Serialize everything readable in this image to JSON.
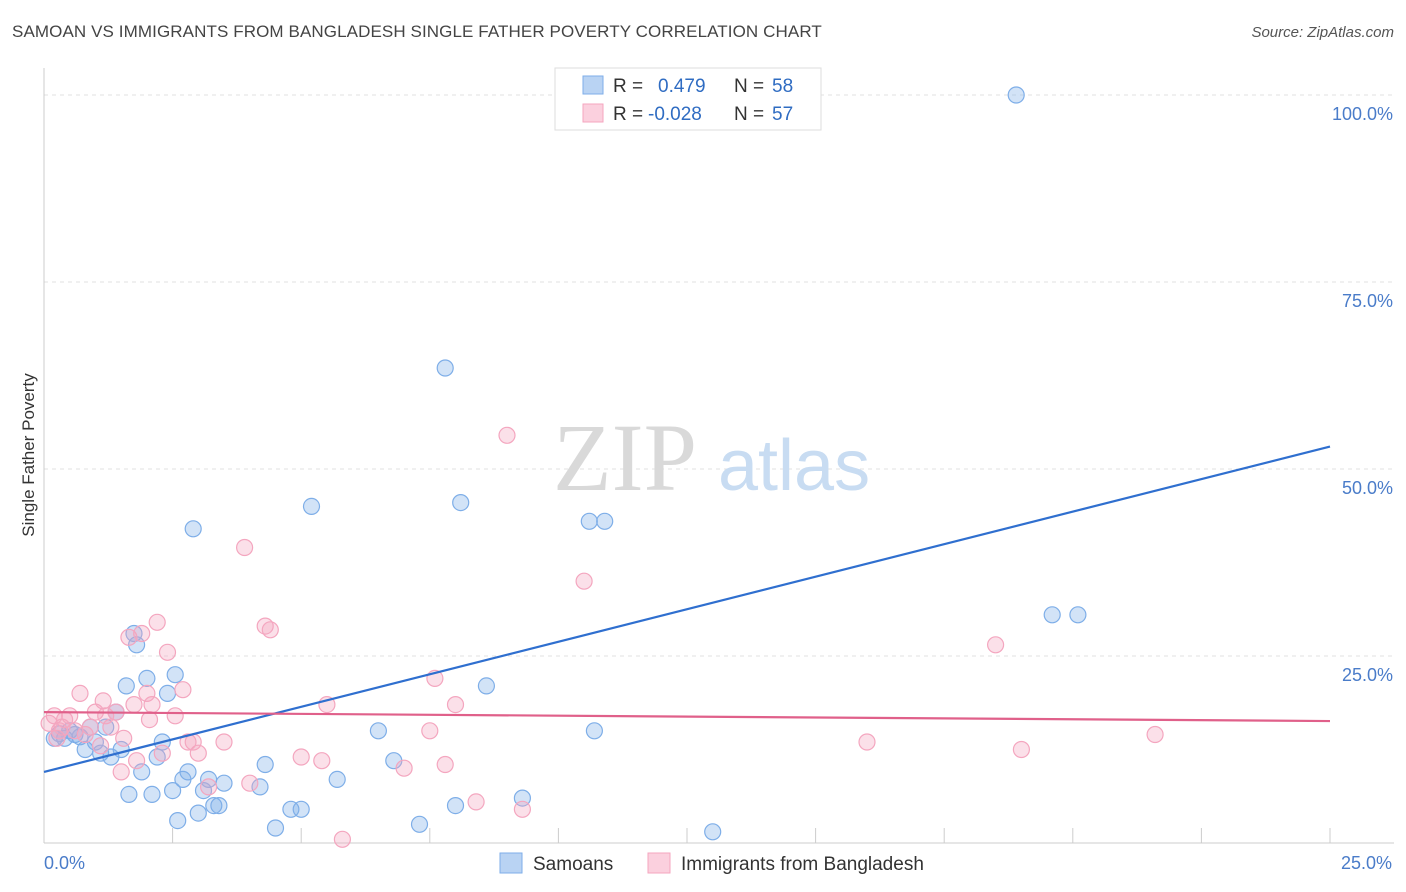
{
  "title": "SAMOAN VS IMMIGRANTS FROM BANGLADESH SINGLE FATHER POVERTY CORRELATION CHART",
  "source": "Source: ZipAtlas.com",
  "watermark": {
    "zip": "ZIP",
    "atlas": "atlas"
  },
  "chart_data": {
    "type": "scatter",
    "xlabel": "",
    "ylabel": "Single Father Poverty",
    "xlim": [
      0,
      25
    ],
    "ylim": [
      0,
      102
    ],
    "x_tick_labels": {
      "min": "0.0%",
      "max": "25.0%"
    },
    "y_ticks": [
      {
        "value": 25,
        "label": "25.0%"
      },
      {
        "value": 50,
        "label": "50.0%"
      },
      {
        "value": 75,
        "label": "75.0%"
      },
      {
        "value": 100,
        "label": "100.0%"
      }
    ],
    "grid": "horizontal dashed",
    "legend_position": "top-center",
    "series": [
      {
        "name": "Samoans",
        "color": "#7eaee8",
        "line_color": "#2f6fcf",
        "R": "0.479",
        "N": "58",
        "trend": {
          "x0": 0,
          "y0": 9.5,
          "x1": 25,
          "y1": 53
        },
        "points": [
          [
            0.2,
            14.0
          ],
          [
            0.3,
            14.6
          ],
          [
            0.4,
            14.0
          ],
          [
            0.5,
            15.0
          ],
          [
            0.6,
            14.5
          ],
          [
            0.7,
            14.2
          ],
          [
            0.8,
            12.5
          ],
          [
            0.9,
            15.5
          ],
          [
            1.0,
            13.5
          ],
          [
            1.1,
            12.0
          ],
          [
            1.2,
            15.5
          ],
          [
            1.3,
            11.5
          ],
          [
            1.4,
            17.5
          ],
          [
            1.5,
            12.5
          ],
          [
            1.6,
            21.0
          ],
          [
            1.65,
            6.5
          ],
          [
            1.75,
            28.0
          ],
          [
            1.8,
            26.5
          ],
          [
            1.9,
            9.5
          ],
          [
            2.0,
            22.0
          ],
          [
            2.1,
            6.5
          ],
          [
            2.2,
            11.5
          ],
          [
            2.3,
            13.5
          ],
          [
            2.4,
            20.0
          ],
          [
            2.5,
            7.0
          ],
          [
            2.55,
            22.5
          ],
          [
            2.6,
            3.0
          ],
          [
            2.7,
            8.5
          ],
          [
            2.8,
            9.5
          ],
          [
            2.9,
            42.0
          ],
          [
            3.0,
            4.0
          ],
          [
            3.1,
            7.0
          ],
          [
            3.2,
            8.5
          ],
          [
            3.3,
            5.0
          ],
          [
            3.4,
            5.0
          ],
          [
            3.5,
            8.0
          ],
          [
            4.2,
            7.5
          ],
          [
            4.3,
            10.5
          ],
          [
            4.5,
            2.0
          ],
          [
            4.8,
            4.5
          ],
          [
            5.0,
            4.5
          ],
          [
            5.2,
            45.0
          ],
          [
            5.7,
            8.5
          ],
          [
            6.5,
            15.0
          ],
          [
            6.8,
            11.0
          ],
          [
            7.3,
            2.5
          ],
          [
            7.8,
            63.5
          ],
          [
            8.0,
            5.0
          ],
          [
            8.1,
            45.5
          ],
          [
            8.6,
            21.0
          ],
          [
            9.3,
            6.0
          ],
          [
            10.6,
            43.0
          ],
          [
            10.7,
            15.0
          ],
          [
            10.9,
            43.0
          ],
          [
            13.0,
            1.5
          ],
          [
            18.9,
            100.0
          ],
          [
            19.6,
            30.5
          ],
          [
            20.1,
            30.5
          ]
        ]
      },
      {
        "name": "Immigrants from Bangladesh",
        "color": "#f4a6bf",
        "line_color": "#e0608a",
        "R": "-0.028",
        "N": "57",
        "trend": {
          "x0": 0,
          "y0": 17.5,
          "x1": 25,
          "y1": 16.3
        },
        "points": [
          [
            0.1,
            16.0
          ],
          [
            0.2,
            17.0
          ],
          [
            0.25,
            14.0
          ],
          [
            0.3,
            15.0
          ],
          [
            0.35,
            15.5
          ],
          [
            0.4,
            16.5
          ],
          [
            0.5,
            17.0
          ],
          [
            0.6,
            15.0
          ],
          [
            0.7,
            20.0
          ],
          [
            0.8,
            14.5
          ],
          [
            0.9,
            15.5
          ],
          [
            1.0,
            17.5
          ],
          [
            1.1,
            13.0
          ],
          [
            1.15,
            19.0
          ],
          [
            1.2,
            17.0
          ],
          [
            1.3,
            15.5
          ],
          [
            1.4,
            17.5
          ],
          [
            1.5,
            9.5
          ],
          [
            1.55,
            14.0
          ],
          [
            1.65,
            27.5
          ],
          [
            1.75,
            18.5
          ],
          [
            1.8,
            11.0
          ],
          [
            1.9,
            28.0
          ],
          [
            2.0,
            20.0
          ],
          [
            2.05,
            16.5
          ],
          [
            2.1,
            18.5
          ],
          [
            2.2,
            29.5
          ],
          [
            2.3,
            12.0
          ],
          [
            2.4,
            25.5
          ],
          [
            2.55,
            17.0
          ],
          [
            2.7,
            20.5
          ],
          [
            2.8,
            13.5
          ],
          [
            2.9,
            13.5
          ],
          [
            3.0,
            12.0
          ],
          [
            3.2,
            7.5
          ],
          [
            3.5,
            13.5
          ],
          [
            3.9,
            39.5
          ],
          [
            4.0,
            8.0
          ],
          [
            4.3,
            29.0
          ],
          [
            4.4,
            28.5
          ],
          [
            5.0,
            11.5
          ],
          [
            5.4,
            11.0
          ],
          [
            5.5,
            18.5
          ],
          [
            5.8,
            0.5
          ],
          [
            7.0,
            10.0
          ],
          [
            7.5,
            15.0
          ],
          [
            7.6,
            22.0
          ],
          [
            7.8,
            10.5
          ],
          [
            8.0,
            18.5
          ],
          [
            8.4,
            5.5
          ],
          [
            9.0,
            54.5
          ],
          [
            9.3,
            4.5
          ],
          [
            10.5,
            35.0
          ],
          [
            16.0,
            13.5
          ],
          [
            18.5,
            26.5
          ],
          [
            19.0,
            12.5
          ],
          [
            21.6,
            14.5
          ]
        ]
      }
    ]
  }
}
